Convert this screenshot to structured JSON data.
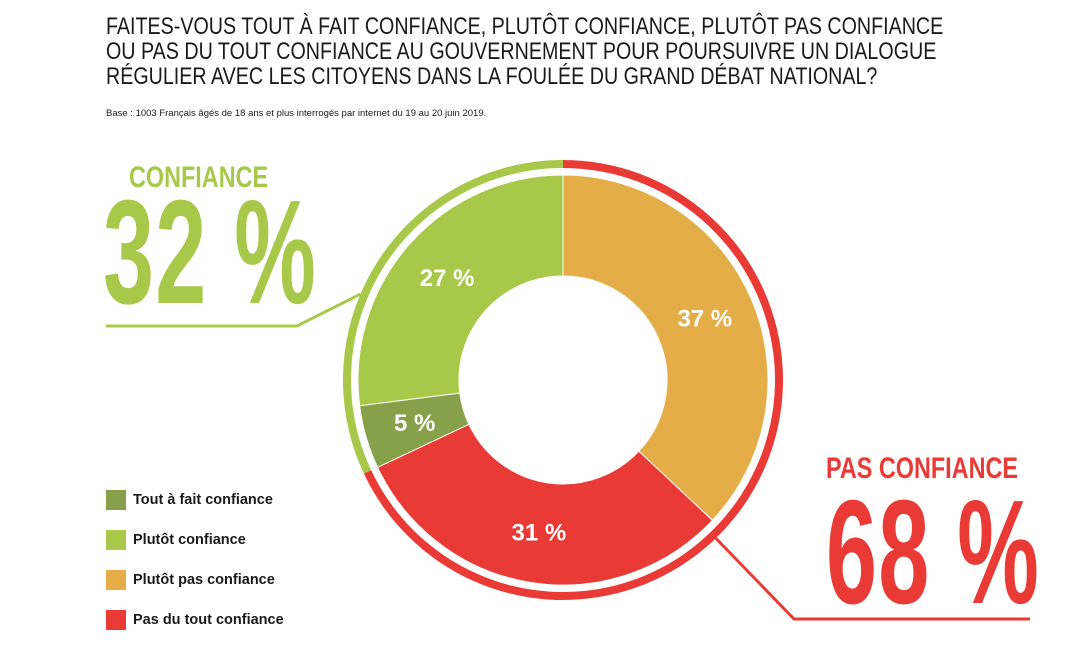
{
  "title_lines": [
    "FAITES-VOUS TOUT À FAIT CONFIANCE, PLUTÔT CONFIANCE, PLUTÔT PAS CONFIANCE",
    "OU PAS DU TOUT CONFIANCE AU GOUVERNEMENT POUR POURSUIVRE UN DIALOGUE",
    "RÉGULIER AVEC LES CITOYENS DANS LA FOULÉE DU GRAND DÉBAT NATIONAL?"
  ],
  "base_note": "Base : 1003 Français âgés de 18 ans et plus interrogés par internet du 19 au 20 juin 2019.",
  "groups": {
    "confiance": {
      "label": "CONFIANCE",
      "value_text": "32 %",
      "value": 32,
      "color": "#a8c84a"
    },
    "pas_confiance": {
      "label": "PAS CONFIANCE",
      "value_text": "68 %",
      "value": 68,
      "color": "#ea3a35"
    }
  },
  "chart_data": {
    "type": "pie",
    "variant": "donut",
    "title": "FAITES-VOUS TOUT À FAIT CONFIANCE, PLUTÔT CONFIANCE, PLUTÔT PAS CONFIANCE OU PAS DU TOUT CONFIANCE AU GOUVERNEMENT POUR POURSUIVRE UN DIALOGUE RÉGULIER AVEC LES CITOYENS DANS LA FOULÉE DU GRAND DÉBAT NATIONAL?",
    "start": "top",
    "direction": "clockwise",
    "slices": [
      {
        "label": "Plutôt pas confiance",
        "value": 37,
        "value_text": "37 %",
        "color": "#e5ad47"
      },
      {
        "label": "Pas du tout confiance",
        "value": 31,
        "value_text": "31 %",
        "color": "#ea3a35"
      },
      {
        "label": "Tout à fait confiance",
        "value": 5,
        "value_text": "5 %",
        "color": "#86a14a"
      },
      {
        "label": "Plutôt confiance",
        "value": 27,
        "value_text": "27 %",
        "color": "#a8c84a"
      }
    ],
    "legend_position": "bottom-left",
    "legend": [
      {
        "label": "Tout à fait confiance",
        "color": "#86a14a"
      },
      {
        "label": "Plutôt confiance",
        "color": "#a8c84a"
      },
      {
        "label": "Plutôt pas confiance",
        "color": "#e5ad47"
      },
      {
        "label": "Pas du tout confiance",
        "color": "#ea3a35"
      }
    ],
    "outer_rings": [
      {
        "group": "confiance",
        "value": 32,
        "color": "#a8c84a"
      },
      {
        "group": "pas_confiance",
        "value": 68,
        "color": "#ea3a35"
      }
    ]
  }
}
